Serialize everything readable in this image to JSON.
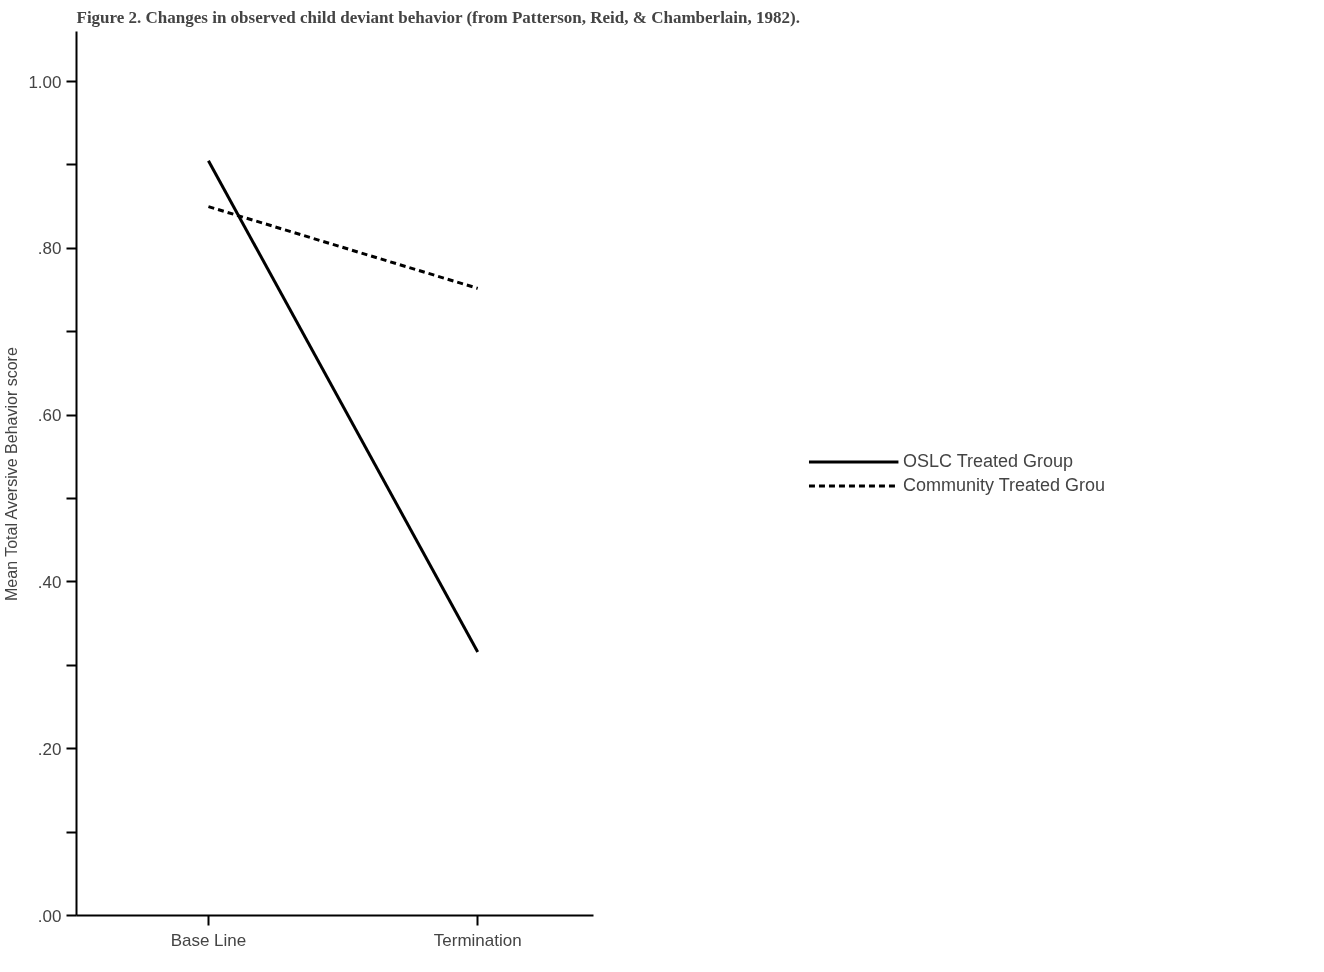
{
  "chart_data": {
    "type": "line",
    "title": "Figure 2. Changes in observed child deviant behavior (from Patterson, Reid, & Chamberlain, 1982).",
    "ylabel": "Mean Total Aversive Behavior score",
    "categories": [
      "Base Line",
      "Termination"
    ],
    "series": [
      {
        "name": "OSLC Treated Group",
        "color": "#000000",
        "values": [
          0.905,
          0.316
        ],
        "line_style": "solid"
      },
      {
        "name": "Community Treated Grou",
        "color": "#000000",
        "values": [
          0.85,
          0.752
        ],
        "line_style": "dashed"
      }
    ],
    "ylim": [
      0,
      1.06
    ],
    "yticks": [
      {
        "value": 0,
        "label": ".00"
      },
      {
        "value": 0.1,
        "label": null
      },
      {
        "value": 0.2,
        "label": ".20"
      },
      {
        "value": 0.3,
        "label": null
      },
      {
        "value": 0.4,
        "label": ".40"
      },
      {
        "value": 0.5,
        "label": null
      },
      {
        "value": 0.6,
        "label": ".60"
      },
      {
        "value": 0.7,
        "label": null
      },
      {
        "value": 0.8,
        "label": ".80"
      },
      {
        "value": 0.9,
        "label": null
      },
      {
        "value": 1.0,
        "label": "1.00"
      }
    ],
    "grid": false,
    "legend": "right",
    "marker": "none"
  }
}
